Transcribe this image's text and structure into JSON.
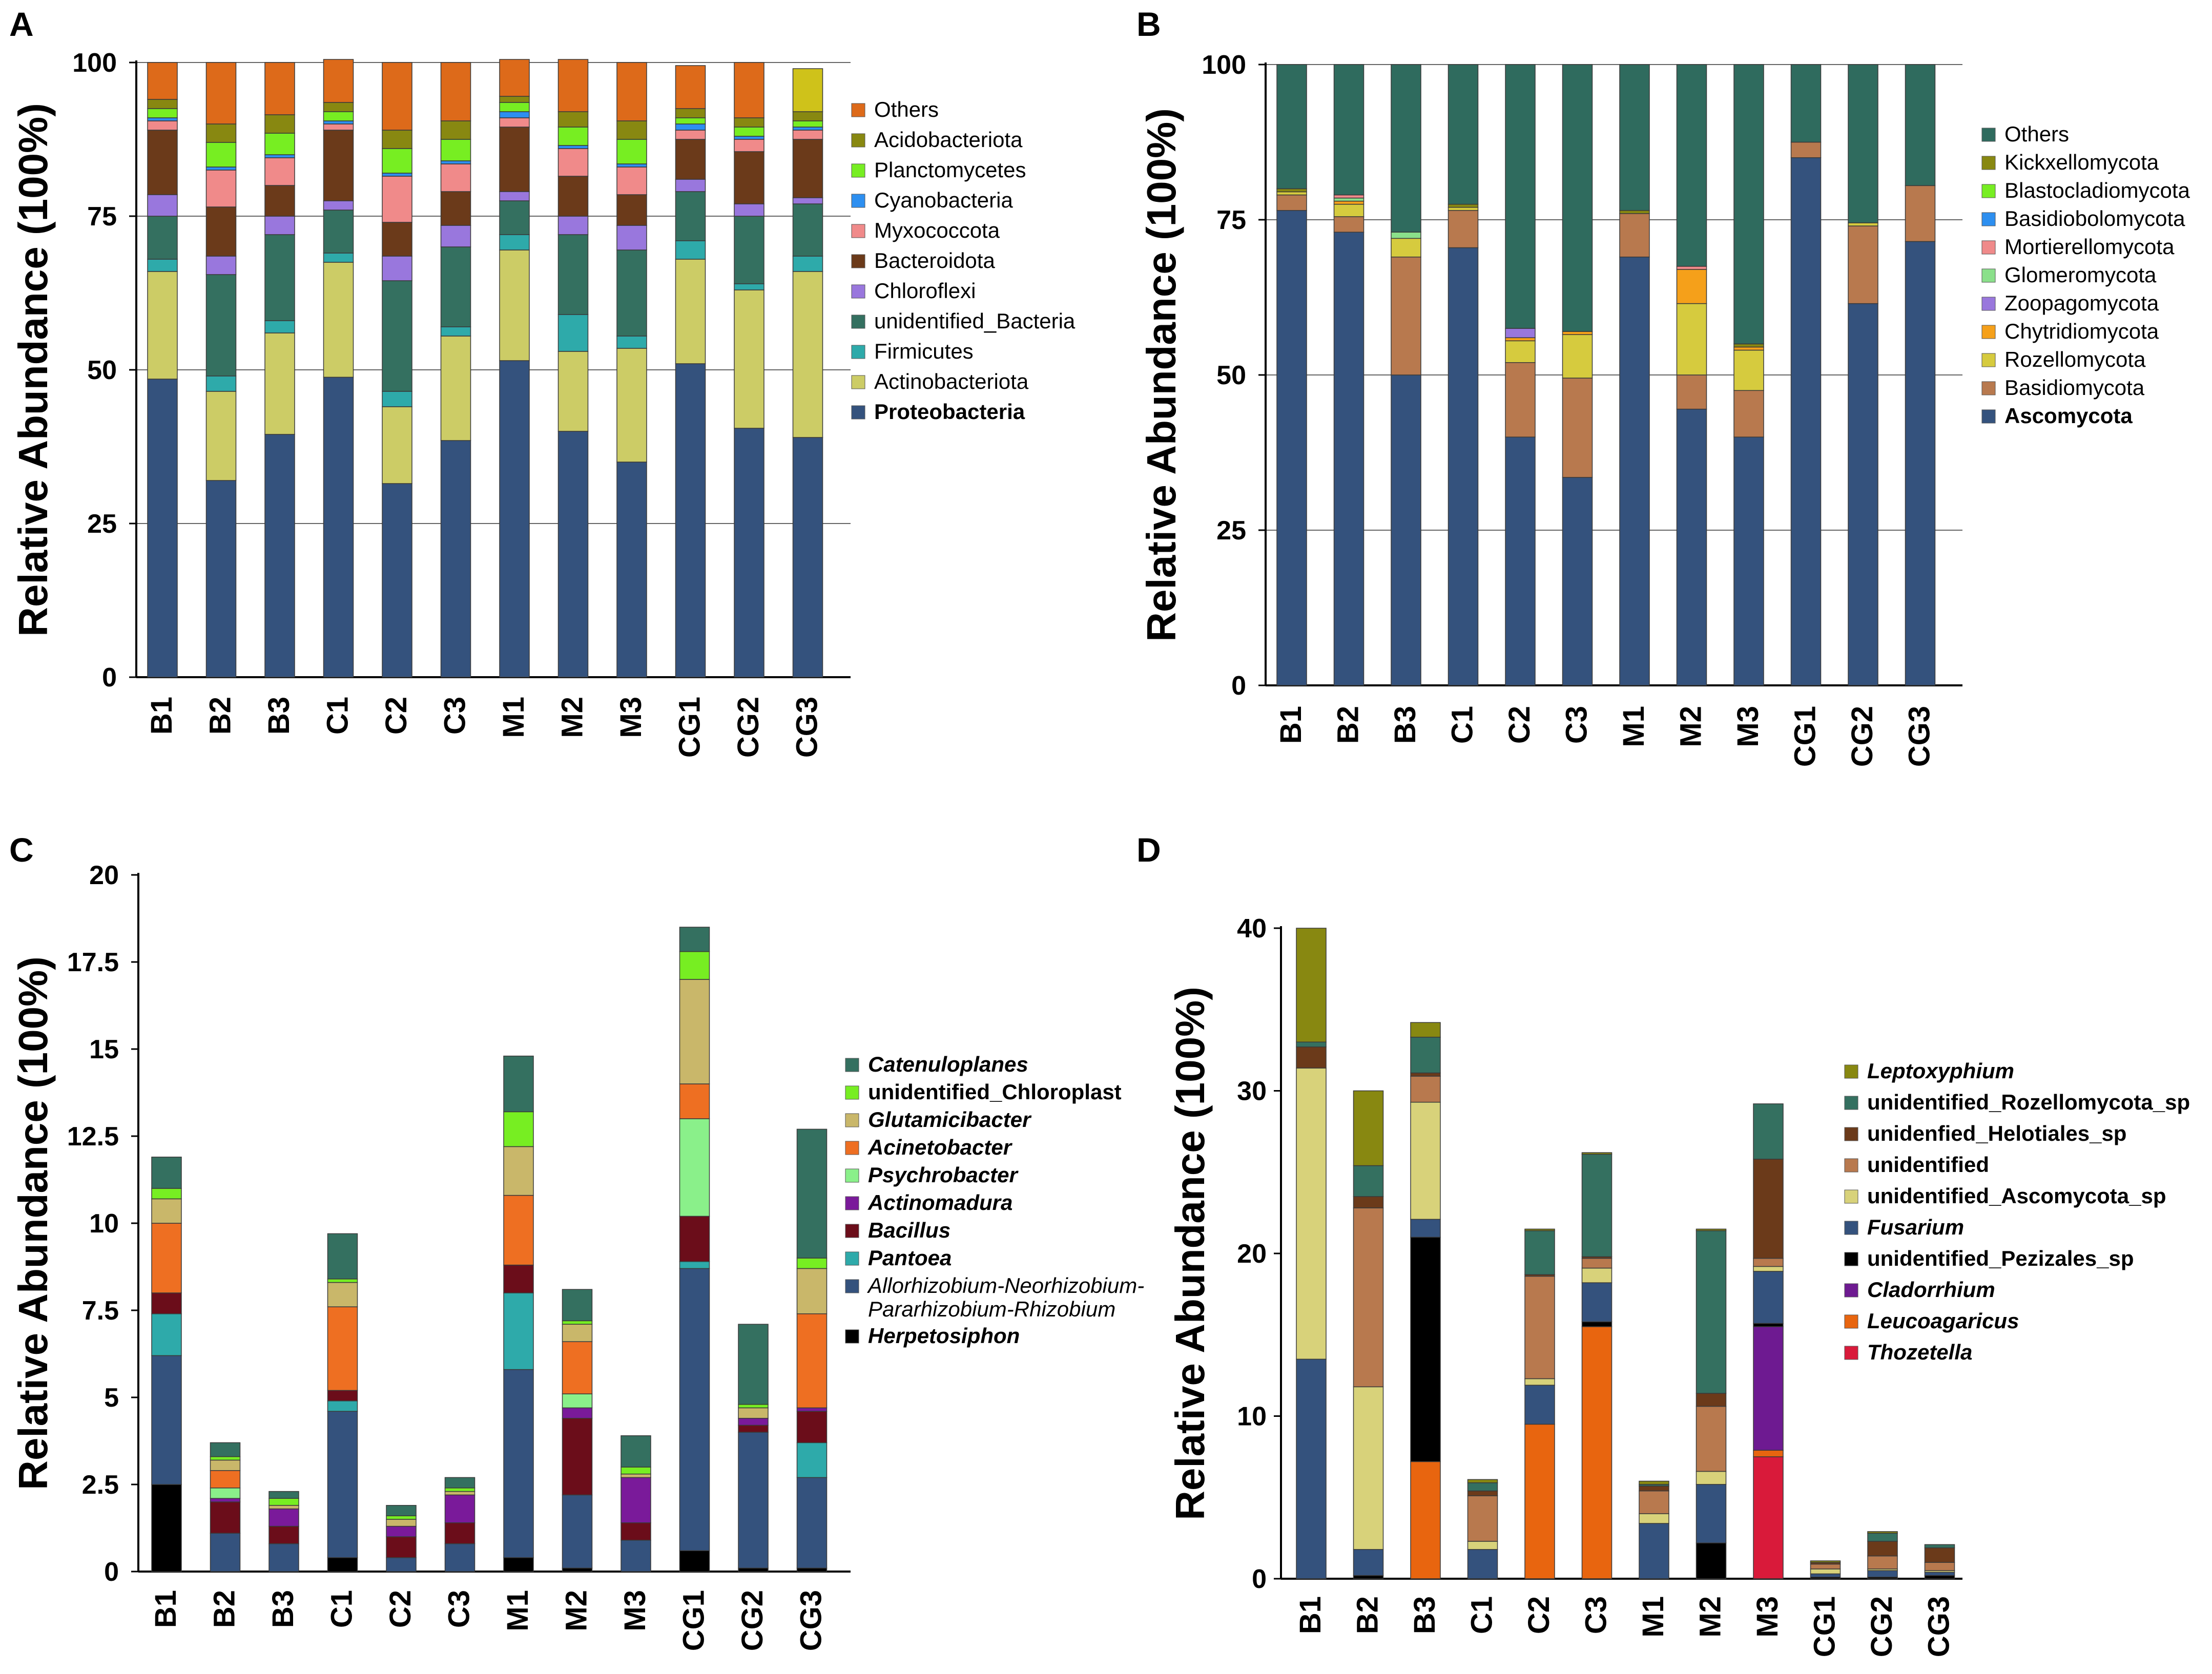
{
  "chart_data": [
    {
      "panel": "A",
      "type": "bar",
      "stacked": true,
      "ylabel": "Relative Abundance (100%)",
      "ylim": [
        0,
        100
      ],
      "yticks": [
        0,
        25,
        50,
        75,
        100
      ],
      "tick_labels": [
        "0",
        "25",
        "50",
        "75",
        "100"
      ],
      "grid": true,
      "legend": "right",
      "legend_bold_last": true,
      "categories": [
        "B1",
        "B2",
        "B3",
        "C1",
        "C2",
        "C3",
        "M1",
        "M2",
        "M3",
        "CG1",
        "CG2",
        "CG3"
      ],
      "series": [
        {
          "name": "Proteobacteria",
          "color": "#34527d",
          "values": [
            48.5,
            32,
            39.5,
            48.8,
            31.5,
            38.5,
            51.5,
            40,
            35,
            51,
            40.5,
            39
          ]
        },
        {
          "name": "Actinobacteriota",
          "color": "#cccc66",
          "values": [
            17.5,
            14.5,
            16.5,
            18.7,
            12.5,
            17,
            18,
            13,
            18.5,
            17,
            22.5,
            27
          ]
        },
        {
          "name": "Firmicutes",
          "color": "#2eaaaa",
          "values": [
            2,
            2.5,
            2,
            1.5,
            2.5,
            1.5,
            2.5,
            6,
            2,
            3,
            1,
            2.5
          ]
        },
        {
          "name": "unidentified_Bacteria",
          "color": "#347060",
          "values": [
            7,
            16.5,
            14,
            7,
            18,
            13,
            5.5,
            13,
            14,
            8,
            11,
            8.5
          ]
        },
        {
          "name": "Chloroflexi",
          "color": "#9977dd",
          "values": [
            3.5,
            3,
            3,
            1.5,
            4,
            3.5,
            1.5,
            3,
            4,
            2,
            2,
            1
          ]
        },
        {
          "name": "Bacteroidota",
          "color": "#6b3a1a",
          "values": [
            10.5,
            8,
            5,
            11.5,
            5.5,
            5.5,
            10.5,
            6.5,
            5,
            6.5,
            8.5,
            9.5
          ]
        },
        {
          "name": "Myxococcota",
          "color": "#f08a8a",
          "values": [
            1.5,
            6,
            4.5,
            1,
            7.5,
            4.5,
            1.5,
            4.5,
            4.5,
            1.5,
            2,
            1.5
          ]
        },
        {
          "name": "Cyanobacteria",
          "color": "#2d8ff0",
          "values": [
            0.5,
            0.5,
            0.5,
            0.5,
            0.5,
            0.5,
            1,
            0.5,
            0.5,
            1,
            0.5,
            0.5
          ]
        },
        {
          "name": "Planctomycetes",
          "color": "#77ee22",
          "values": [
            1.5,
            4,
            3.5,
            1.5,
            4,
            3.5,
            1.5,
            3,
            4,
            1,
            1.5,
            1
          ]
        },
        {
          "name": "Acidobacteriota",
          "color": "#888811",
          "values": [
            1.5,
            3,
            3,
            1.5,
            3,
            3,
            1,
            2.5,
            3,
            1.5,
            1.5,
            1.5
          ]
        },
        {
          "name": "Others",
          "color": "#dd6a1a",
          "values": [
            6,
            10,
            8.5,
            7,
            11,
            9.5,
            6,
            8.5,
            9.5,
            7,
            9,
            7
          ]
        }
      ],
      "last_bar_others_color": "#cfc21a"
    },
    {
      "panel": "B",
      "type": "bar",
      "stacked": true,
      "ylabel": "Relative Abundance (100%)",
      "ylim": [
        0,
        100
      ],
      "yticks": [
        0,
        25,
        50,
        75,
        100
      ],
      "tick_labels": [
        "0",
        "25",
        "50",
        "75",
        "100"
      ],
      "grid": true,
      "legend": "right",
      "legend_bold_last": true,
      "categories": [
        "B1",
        "B2",
        "B3",
        "C1",
        "C2",
        "C3",
        "M1",
        "M2",
        "M3",
        "CG1",
        "CG2",
        "CG3"
      ],
      "series": [
        {
          "name": "Ascomycota",
          "color": "#34527d",
          "values": [
            76.5,
            73,
            50,
            70.5,
            40,
            33.5,
            69,
            44.5,
            40,
            85,
            61.5,
            71.5
          ]
        },
        {
          "name": "Basidiomycota",
          "color": "#b8794e",
          "values": [
            2.5,
            2.5,
            19,
            6,
            12,
            16,
            7,
            5.5,
            7.5,
            2.5,
            12.5,
            9
          ]
        },
        {
          "name": "Rozellomycota",
          "color": "#d6cb3e",
          "values": [
            0.5,
            2,
            3,
            0.5,
            3.5,
            7,
            0,
            11.5,
            6.5,
            0,
            0.5,
            0
          ]
        },
        {
          "name": "Chytridiomycota",
          "color": "#f5a01a",
          "values": [
            0,
            0.5,
            0,
            0,
            0.5,
            0.5,
            0,
            5.5,
            0.5,
            0,
            0,
            0
          ]
        },
        {
          "name": "Zoopagomycota",
          "color": "#9977dd",
          "values": [
            0,
            0,
            0,
            0,
            1.5,
            0,
            0,
            0,
            0,
            0,
            0,
            0
          ]
        },
        {
          "name": "Glomeromycota",
          "color": "#8ae08a",
          "values": [
            0,
            0.5,
            1,
            0,
            0,
            0,
            0,
            0,
            0,
            0,
            0,
            0
          ]
        },
        {
          "name": "Mortierellomycota",
          "color": "#f08a8a",
          "values": [
            0,
            0.5,
            0,
            0,
            0,
            0,
            0,
            0.5,
            0,
            0,
            0,
            0
          ]
        },
        {
          "name": "Basidiobolomycota",
          "color": "#2d8ff0",
          "values": [
            0,
            0,
            0,
            0,
            0,
            0,
            0,
            0,
            0,
            0,
            0,
            0
          ]
        },
        {
          "name": "Blastocladiomycota",
          "color": "#77ee22",
          "values": [
            0,
            0,
            0,
            0,
            0,
            0,
            0,
            0,
            0,
            0,
            0,
            0
          ]
        },
        {
          "name": "Kickxellomycota",
          "color": "#888811",
          "values": [
            0.5,
            0,
            0,
            0.5,
            0,
            0,
            0.5,
            0,
            0.5,
            0,
            0,
            0
          ]
        },
        {
          "name": "Others",
          "color": "#2f6b5e",
          "values": [
            20,
            21,
            27,
            22.5,
            42.5,
            43,
            23.5,
            32.5,
            45,
            12.5,
            25.5,
            19.5
          ]
        }
      ]
    },
    {
      "panel": "C",
      "type": "bar",
      "stacked": true,
      "ylabel": "Relative Abundance (100%)",
      "ylim": [
        0,
        20
      ],
      "yticks": [
        0,
        2.5,
        5,
        7.5,
        10,
        12.5,
        15,
        17.5,
        20
      ],
      "tick_labels": [
        "0",
        "2.5",
        "5",
        "7.5",
        "10",
        "12.5",
        "15",
        "17.5",
        "20"
      ],
      "grid": false,
      "legend": "right",
      "legend_italic": true,
      "categories": [
        "B1",
        "B2",
        "B3",
        "C1",
        "C2",
        "C3",
        "M1",
        "M2",
        "M3",
        "CG1",
        "CG2",
        "CG3"
      ],
      "series": [
        {
          "name": "Herpetosiphon",
          "color": "#000000",
          "values": [
            2.5,
            0,
            0,
            0.4,
            0,
            0,
            0.4,
            0.1,
            0,
            0.6,
            0.1,
            0.1
          ]
        },
        {
          "name": "Allorhizobium-Neorhizobium-Pararhizobium-Rhizobium",
          "color": "#34527d",
          "values": [
            3.7,
            1.1,
            0.8,
            4.2,
            0.4,
            0.8,
            5.4,
            2.1,
            0.9,
            8.1,
            3.9,
            2.6
          ]
        },
        {
          "name": "Pantoea",
          "color": "#2eaaaa",
          "values": [
            1.2,
            0,
            0,
            0.3,
            0,
            0,
            2.2,
            0,
            0,
            0.2,
            0,
            1
          ]
        },
        {
          "name": "Bacillus",
          "color": "#6b0d1a",
          "values": [
            0.6,
            0.9,
            0.5,
            0.3,
            0.6,
            0.6,
            0.8,
            2.2,
            0.5,
            1.3,
            0.2,
            0.9
          ]
        },
        {
          "name": "Actinomadura",
          "color": "#7a1a9a",
          "values": [
            0,
            0.1,
            0.5,
            0,
            0.3,
            0.8,
            0,
            0.3,
            1.3,
            0,
            0.2,
            0.1
          ]
        },
        {
          "name": "Psychrobacter",
          "color": "#8af08a",
          "values": [
            0,
            0.3,
            0,
            0,
            0,
            0,
            0,
            0.4,
            0,
            2.8,
            0,
            0
          ]
        },
        {
          "name": "Acinetobacter",
          "color": "#ee6f22",
          "values": [
            2,
            0.5,
            0,
            2.4,
            0,
            0,
            2,
            1.5,
            0,
            1,
            0,
            2.7
          ]
        },
        {
          "name": "Glutamicibacter",
          "color": "#c9b76a",
          "values": [
            0.7,
            0.3,
            0.1,
            0.7,
            0.2,
            0.1,
            1.4,
            0.5,
            0.1,
            3,
            0.3,
            1.3
          ]
        },
        {
          "name": "unidentified_Chloroplast",
          "color": "#77ee22",
          "values": [
            0.3,
            0.1,
            0.2,
            0.1,
            0.1,
            0.1,
            1,
            0.1,
            0.2,
            0.8,
            0.1,
            0.3
          ]
        },
        {
          "name": "Catenuloplanes",
          "color": "#347060",
          "values": [
            0.9,
            0.4,
            0.2,
            1.3,
            0.3,
            0.3,
            1.6,
            0.9,
            0.9,
            0.7,
            2.3,
            3.7
          ]
        }
      ]
    },
    {
      "panel": "D",
      "type": "bar",
      "stacked": true,
      "ylabel": "Relative Abundance (100%)",
      "ylim": [
        0,
        40
      ],
      "yticks": [
        0,
        10,
        20,
        30,
        40
      ],
      "tick_labels": [
        "0",
        "10",
        "20",
        "30",
        "40"
      ],
      "grid": false,
      "legend": "right",
      "legend_italic": true,
      "categories": [
        "B1",
        "B2",
        "B3",
        "C1",
        "C2",
        "C3",
        "M1",
        "M2",
        "M3",
        "CG1",
        "CG2",
        "CG3"
      ],
      "series": [
        {
          "name": "Thozetella",
          "color": "#d91a3a",
          "values": [
            0,
            0,
            0,
            0,
            0,
            0,
            0,
            0,
            7.5,
            0,
            0,
            0
          ]
        },
        {
          "name": "Leucoagaricus",
          "color": "#e8650f",
          "values": [
            0,
            0,
            7.2,
            0,
            9.5,
            15.5,
            0,
            0,
            0.4,
            0,
            0,
            0
          ]
        },
        {
          "name": "Cladorrhium",
          "color": "#6e1a91",
          "values": [
            0,
            0,
            0,
            0,
            0,
            0,
            0,
            0,
            7.6,
            0,
            0,
            0
          ]
        },
        {
          "name": "unidentified_Pezizales_sp",
          "color": "#000000",
          "values": [
            0,
            0.2,
            13.8,
            0,
            0,
            0.3,
            0,
            2.2,
            0.2,
            0.1,
            0.1,
            0.2
          ]
        },
        {
          "name": "Fusarium",
          "color": "#34527d",
          "values": [
            13.5,
            1.6,
            1.1,
            1.8,
            2.4,
            2.4,
            3.4,
            3.6,
            3.2,
            0.2,
            0.4,
            0.2
          ]
        },
        {
          "name": "unidentified_Ascomycota_sp",
          "color": "#d8d27a",
          "values": [
            17.9,
            10,
            7.2,
            0.5,
            0.4,
            0.9,
            0.6,
            0.8,
            0.3,
            0.3,
            0.1,
            0.1
          ]
        },
        {
          "name": "unidentified",
          "color": "#b8794e",
          "values": [
            0,
            11,
            1.6,
            2.8,
            6.3,
            0.6,
            1.4,
            4,
            0.5,
            0.3,
            0.8,
            0.5
          ]
        },
        {
          "name": "unidenfied_Helotiales_sp",
          "color": "#6b3a1a",
          "values": [
            1.3,
            0.7,
            0.2,
            0.3,
            0.1,
            0.1,
            0.3,
            0.8,
            6.1,
            0.1,
            0.9,
            0.9
          ]
        },
        {
          "name": "unidentified_Rozellomycota_sp",
          "color": "#347060",
          "values": [
            0.3,
            1.9,
            2.2,
            0.5,
            2.7,
            6.3,
            0.1,
            10,
            3.4,
            0,
            0.5,
            0.2
          ]
        },
        {
          "name": "Leptoxyphium",
          "color": "#888811",
          "values": [
            7,
            4.6,
            0.9,
            0.2,
            0.1,
            0.1,
            0.2,
            0.1,
            0,
            0.1,
            0.1,
            0
          ]
        }
      ]
    }
  ]
}
